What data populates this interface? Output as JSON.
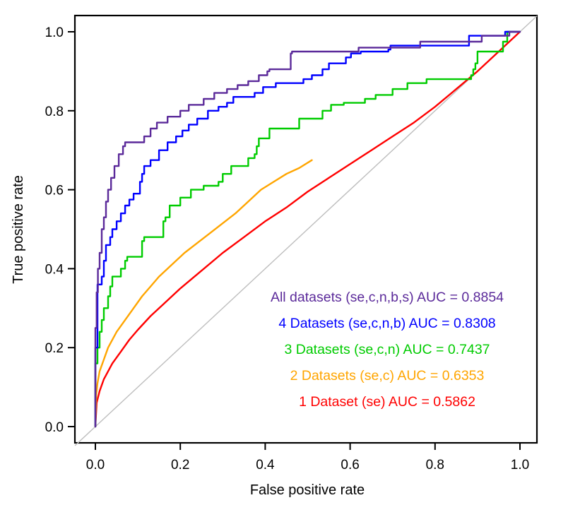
{
  "chart_data": {
    "type": "line",
    "title": "",
    "xlabel": "False positive rate",
    "ylabel": "True positive rate",
    "xlim": [
      0,
      1
    ],
    "ylim": [
      0,
      1
    ],
    "xticks": [
      "0.0",
      "0.2",
      "0.4",
      "0.6",
      "0.8",
      "1.0"
    ],
    "yticks": [
      "0.0",
      "0.2",
      "0.4",
      "0.6",
      "0.8",
      "1.0"
    ],
    "xtick_values": [
      0,
      0.2,
      0.4,
      0.6,
      0.8,
      1.0
    ],
    "ytick_values": [
      0,
      0.2,
      0.4,
      0.6,
      0.8,
      1.0
    ],
    "grid": false,
    "legend_position": "bottom-right",
    "reference_line": {
      "name": "chance diagonal",
      "color": "#bebebe",
      "x": [
        0,
        1
      ],
      "y": [
        0,
        1
      ]
    },
    "series": [
      {
        "name": "All datasets (se,c,n,b,s)",
        "label": "All datasets (se,c,n,b,s) AUC = 0.8854",
        "auc": 0.8854,
        "color": "#5b2a9a",
        "step": true,
        "x": [
          0,
          0,
          0.003,
          0.003,
          0.006,
          0.006,
          0.01,
          0.01,
          0.015,
          0.015,
          0.02,
          0.02,
          0.025,
          0.025,
          0.03,
          0.03,
          0.037,
          0.037,
          0.045,
          0.045,
          0.055,
          0.055,
          0.065,
          0.065,
          0.07,
          0.07,
          0.115,
          0.115,
          0.13,
          0.13,
          0.145,
          0.145,
          0.17,
          0.17,
          0.2,
          0.2,
          0.22,
          0.22,
          0.255,
          0.255,
          0.28,
          0.28,
          0.31,
          0.31,
          0.335,
          0.335,
          0.36,
          0.36,
          0.385,
          0.385,
          0.405,
          0.405,
          0.41,
          0.41,
          0.46,
          0.46,
          0.463,
          0.463,
          0.62,
          0.62,
          0.765,
          0.765,
          0.91,
          0.91,
          0.975,
          0.975,
          1.0
        ],
        "y": [
          0,
          0.25,
          0.25,
          0.34,
          0.34,
          0.4,
          0.4,
          0.44,
          0.44,
          0.5,
          0.5,
          0.53,
          0.53,
          0.57,
          0.57,
          0.6,
          0.6,
          0.63,
          0.63,
          0.66,
          0.66,
          0.69,
          0.69,
          0.71,
          0.71,
          0.72,
          0.72,
          0.735,
          0.735,
          0.755,
          0.755,
          0.77,
          0.77,
          0.785,
          0.785,
          0.8,
          0.8,
          0.815,
          0.815,
          0.83,
          0.83,
          0.845,
          0.845,
          0.855,
          0.855,
          0.865,
          0.865,
          0.875,
          0.875,
          0.89,
          0.89,
          0.9,
          0.9,
          0.905,
          0.905,
          0.945,
          0.945,
          0.95,
          0.95,
          0.96,
          0.96,
          0.975,
          0.975,
          0.99,
          0.99,
          1.0,
          1.0
        ]
      },
      {
        "name": "4 Datasets (se,c,n,b)",
        "label": "4 Datasets (se,c,n,b) AUC = 0.8308",
        "auc": 0.8308,
        "color": "#0000ff",
        "step": true,
        "x": [
          0,
          0,
          0.005,
          0.005,
          0.015,
          0.015,
          0.02,
          0.02,
          0.025,
          0.025,
          0.035,
          0.035,
          0.04,
          0.04,
          0.05,
          0.05,
          0.06,
          0.06,
          0.07,
          0.07,
          0.08,
          0.08,
          0.09,
          0.09,
          0.105,
          0.105,
          0.11,
          0.11,
          0.115,
          0.115,
          0.13,
          0.13,
          0.15,
          0.15,
          0.17,
          0.17,
          0.19,
          0.19,
          0.205,
          0.205,
          0.22,
          0.22,
          0.24,
          0.24,
          0.265,
          0.265,
          0.29,
          0.29,
          0.31,
          0.31,
          0.325,
          0.325,
          0.375,
          0.375,
          0.395,
          0.395,
          0.425,
          0.425,
          0.49,
          0.49,
          0.51,
          0.51,
          0.535,
          0.535,
          0.55,
          0.55,
          0.59,
          0.59,
          0.602,
          0.602,
          0.625,
          0.625,
          0.69,
          0.69,
          0.695,
          0.695,
          0.88,
          0.88,
          0.965,
          0.965,
          1.0
        ],
        "y": [
          0,
          0.2,
          0.2,
          0.36,
          0.36,
          0.38,
          0.38,
          0.42,
          0.42,
          0.46,
          0.46,
          0.48,
          0.48,
          0.5,
          0.5,
          0.52,
          0.52,
          0.54,
          0.54,
          0.56,
          0.56,
          0.575,
          0.575,
          0.59,
          0.59,
          0.62,
          0.62,
          0.64,
          0.64,
          0.66,
          0.66,
          0.675,
          0.675,
          0.7,
          0.7,
          0.72,
          0.72,
          0.735,
          0.735,
          0.75,
          0.75,
          0.765,
          0.765,
          0.78,
          0.78,
          0.8,
          0.8,
          0.81,
          0.81,
          0.82,
          0.82,
          0.835,
          0.835,
          0.845,
          0.845,
          0.86,
          0.86,
          0.87,
          0.87,
          0.88,
          0.88,
          0.89,
          0.89,
          0.905,
          0.905,
          0.92,
          0.92,
          0.935,
          0.935,
          0.945,
          0.945,
          0.95,
          0.95,
          0.955,
          0.955,
          0.965,
          0.965,
          0.99,
          0.99,
          1.0,
          1.0
        ]
      },
      {
        "name": "3 Datasets (se,c,n)",
        "label": "3 Datasets (se,c,n) AUC = 0.7437",
        "auc": 0.7437,
        "color": "#00cc00",
        "step": true,
        "x": [
          0,
          0,
          0.005,
          0.005,
          0.01,
          0.01,
          0.015,
          0.015,
          0.02,
          0.02,
          0.03,
          0.03,
          0.035,
          0.035,
          0.04,
          0.04,
          0.06,
          0.06,
          0.07,
          0.07,
          0.075,
          0.075,
          0.11,
          0.11,
          0.115,
          0.115,
          0.16,
          0.16,
          0.165,
          0.165,
          0.175,
          0.175,
          0.2,
          0.2,
          0.225,
          0.225,
          0.255,
          0.255,
          0.29,
          0.29,
          0.3,
          0.3,
          0.32,
          0.32,
          0.36,
          0.36,
          0.375,
          0.375,
          0.38,
          0.38,
          0.385,
          0.385,
          0.41,
          0.41,
          0.48,
          0.48,
          0.535,
          0.535,
          0.555,
          0.555,
          0.585,
          0.585,
          0.635,
          0.635,
          0.66,
          0.66,
          0.7,
          0.7,
          0.735,
          0.735,
          0.78,
          0.78,
          0.885,
          0.885,
          0.89,
          0.89,
          0.895,
          0.895,
          0.9,
          0.9,
          0.96,
          0.96,
          0.97,
          0.97,
          1.0
        ],
        "y": [
          0,
          0.16,
          0.16,
          0.2,
          0.2,
          0.24,
          0.24,
          0.27,
          0.27,
          0.3,
          0.3,
          0.33,
          0.33,
          0.355,
          0.355,
          0.38,
          0.38,
          0.4,
          0.4,
          0.42,
          0.42,
          0.43,
          0.43,
          0.47,
          0.47,
          0.48,
          0.48,
          0.52,
          0.52,
          0.53,
          0.53,
          0.56,
          0.56,
          0.58,
          0.58,
          0.6,
          0.6,
          0.61,
          0.61,
          0.62,
          0.62,
          0.64,
          0.64,
          0.66,
          0.66,
          0.68,
          0.68,
          0.69,
          0.69,
          0.71,
          0.71,
          0.73,
          0.73,
          0.755,
          0.755,
          0.78,
          0.78,
          0.8,
          0.8,
          0.815,
          0.815,
          0.82,
          0.82,
          0.83,
          0.83,
          0.84,
          0.84,
          0.855,
          0.855,
          0.87,
          0.87,
          0.88,
          0.88,
          0.89,
          0.89,
          0.905,
          0.905,
          0.92,
          0.92,
          0.95,
          0.95,
          0.975,
          0.975,
          1.0,
          1.0
        ]
      },
      {
        "name": "2 Datasets (se,c)",
        "label": "2 Datasets (se,c) AUC = 0.6353",
        "auc": 0.6353,
        "color": "#ffa500",
        "step": false,
        "x": [
          0,
          0.002,
          0.005,
          0.01,
          0.02,
          0.03,
          0.05,
          0.07,
          0.09,
          0.11,
          0.13,
          0.15,
          0.18,
          0.21,
          0.24,
          0.27,
          0.3,
          0.33,
          0.36,
          0.39,
          0.42,
          0.45,
          0.48,
          0.51
        ],
        "y": [
          0,
          0.08,
          0.11,
          0.14,
          0.17,
          0.2,
          0.24,
          0.27,
          0.3,
          0.33,
          0.355,
          0.38,
          0.41,
          0.44,
          0.465,
          0.49,
          0.515,
          0.54,
          0.57,
          0.6,
          0.62,
          0.64,
          0.655,
          0.675
        ]
      },
      {
        "name": "1 Dataset (se)",
        "label": "1 Dataset (se) AUC = 0.5862",
        "auc": 0.5862,
        "color": "#ff0000",
        "step": false,
        "x": [
          0,
          0.003,
          0.01,
          0.02,
          0.04,
          0.06,
          0.08,
          0.1,
          0.13,
          0.16,
          0.2,
          0.25,
          0.3,
          0.35,
          0.4,
          0.45,
          0.5,
          0.55,
          0.6,
          0.65,
          0.7,
          0.75,
          0.8,
          0.85,
          0.9,
          0.95,
          1.0
        ],
        "y": [
          0,
          0.06,
          0.09,
          0.12,
          0.16,
          0.19,
          0.22,
          0.245,
          0.28,
          0.31,
          0.35,
          0.395,
          0.44,
          0.48,
          0.52,
          0.555,
          0.595,
          0.63,
          0.665,
          0.7,
          0.735,
          0.77,
          0.81,
          0.855,
          0.9,
          0.95,
          1.0
        ]
      }
    ]
  }
}
